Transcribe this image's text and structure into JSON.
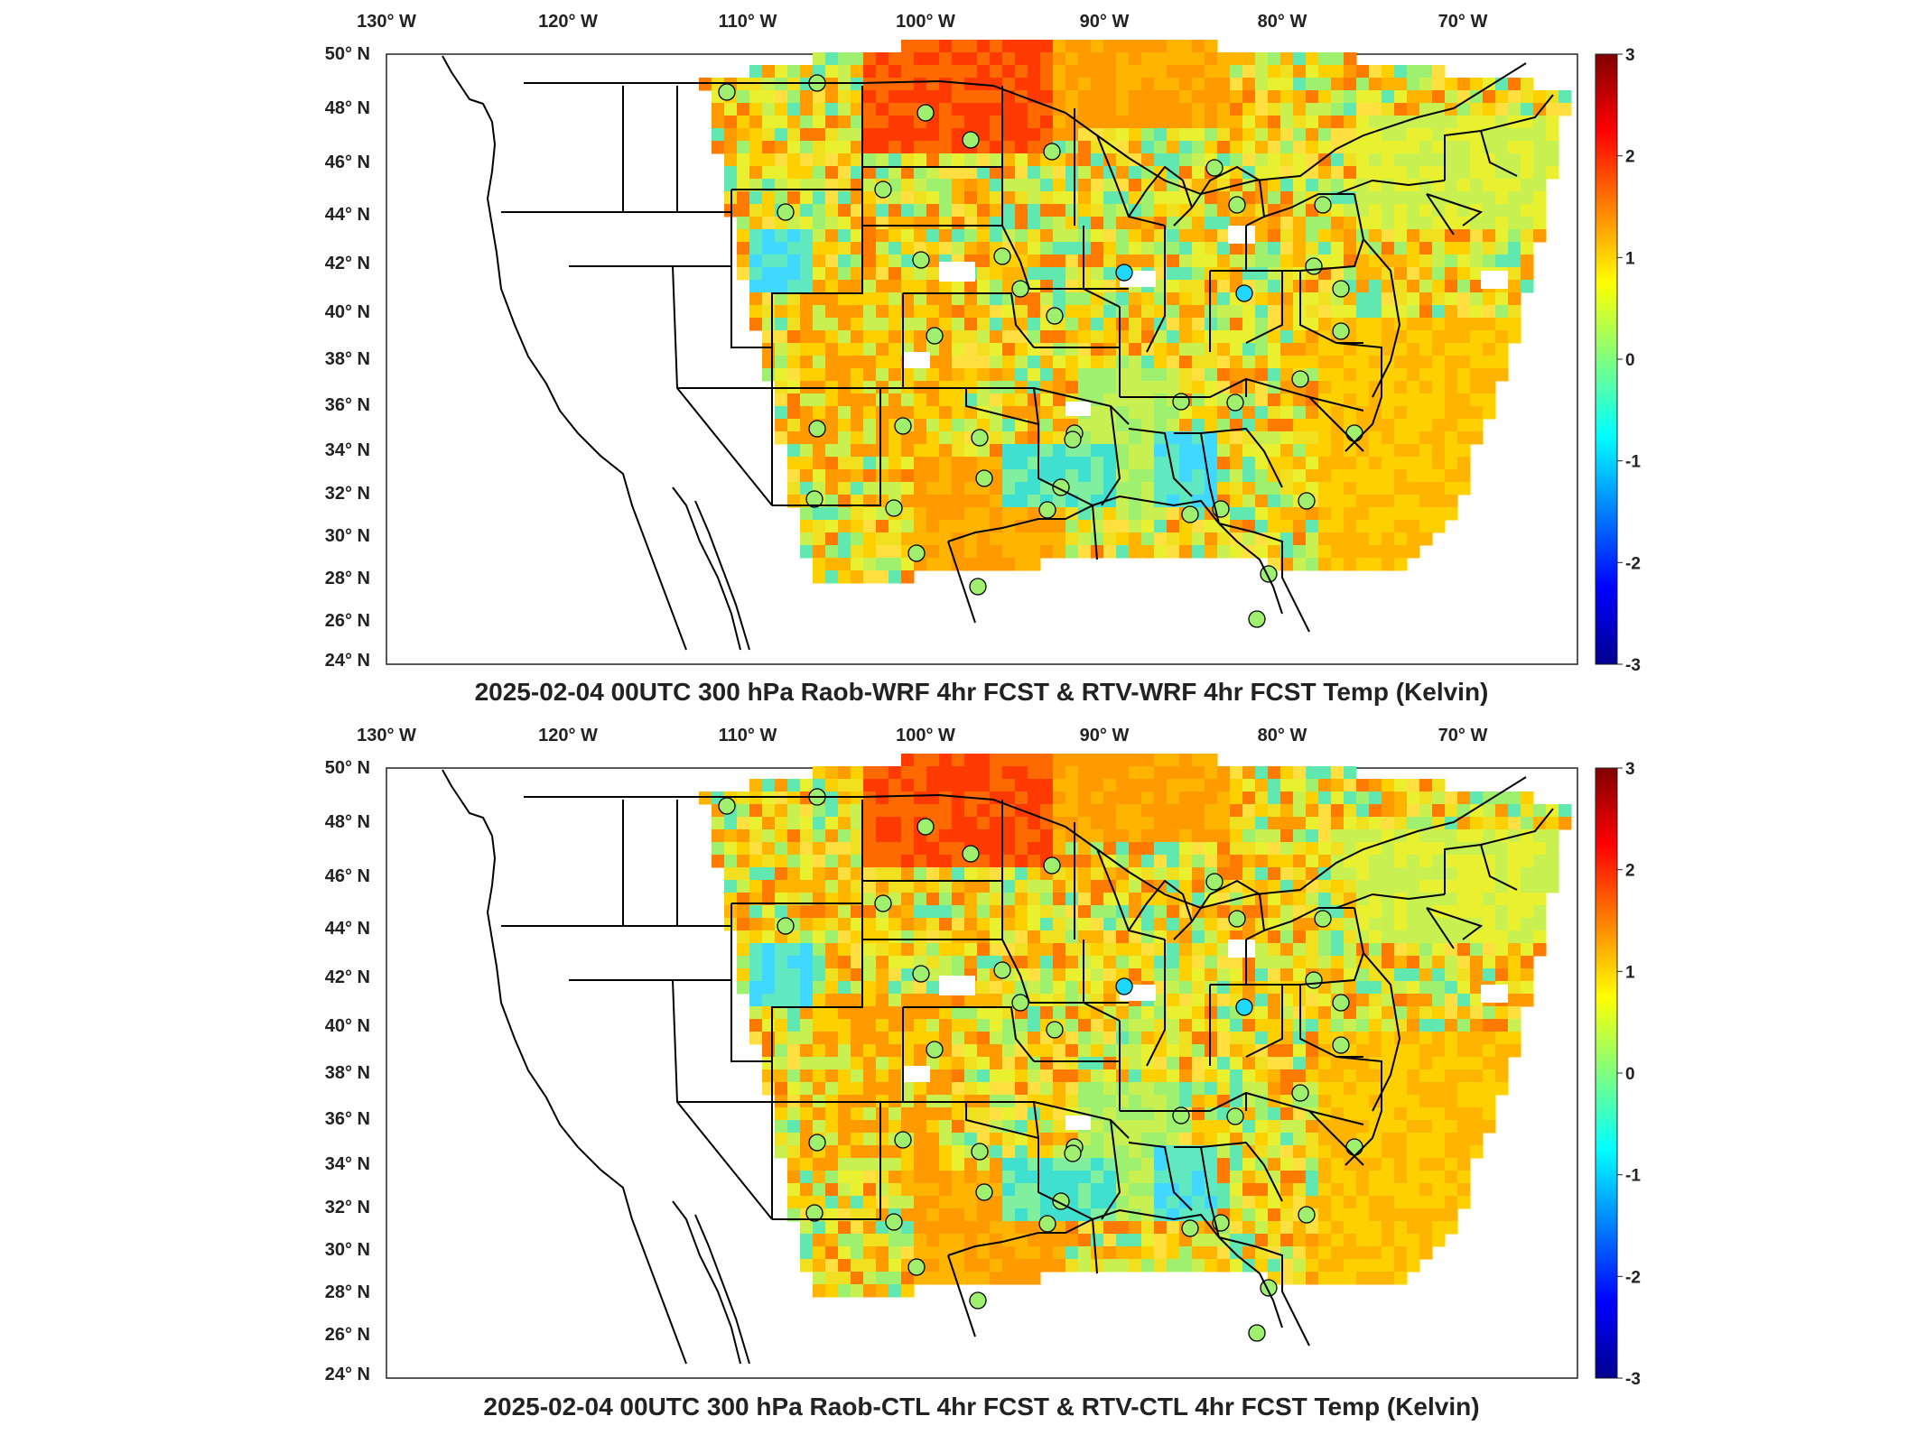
{
  "panels": [
    {
      "title": "2025-02-04 00UTC 300 hPa Raob-WRF 4hr FCST & RTV-WRF 4hr FCST Temp (Kelvin)",
      "lon_labels": [
        "130",
        "120",
        "110",
        "100",
        "90",
        "80",
        "70"
      ],
      "lon_suffix": "W",
      "lat_labels": [
        "50",
        "48",
        "46",
        "44",
        "42",
        "40",
        "38",
        "36",
        "34",
        "32",
        "30",
        "28",
        "26",
        "24"
      ],
      "lat_suffix": "N",
      "colorbar_ticks": [
        "3",
        "2",
        "1",
        "0",
        "-1",
        "-2",
        "-3"
      ]
    },
    {
      "title": "2025-02-04 00UTC 300 hPa Raob-CTL 4hr FCST & RTV-CTL 4hr FCST Temp (Kelvin)",
      "lon_labels": [
        "130",
        "120",
        "110",
        "100",
        "90",
        "80",
        "70"
      ],
      "lon_suffix": "W",
      "lat_labels": [
        "50",
        "48",
        "46",
        "44",
        "42",
        "40",
        "38",
        "36",
        "34",
        "32",
        "30",
        "28",
        "26",
        "24"
      ],
      "lat_suffix": "N",
      "colorbar_ticks": [
        "3",
        "2",
        "1",
        "0",
        "-1",
        "-2",
        "-3"
      ]
    }
  ],
  "colormap": {
    "name": "jet",
    "range": [
      -3,
      3
    ],
    "colors": [
      "#00008f",
      "#0000ff",
      "#00ffff",
      "#7fff7f",
      "#ffff00",
      "#ff0000",
      "#800000"
    ]
  },
  "map_colors": {
    "land_outline": "#000000",
    "field_dominant_positive": "#ffb000",
    "field_neutral": "#c8f050",
    "field_negative": "#40e0d0"
  }
}
